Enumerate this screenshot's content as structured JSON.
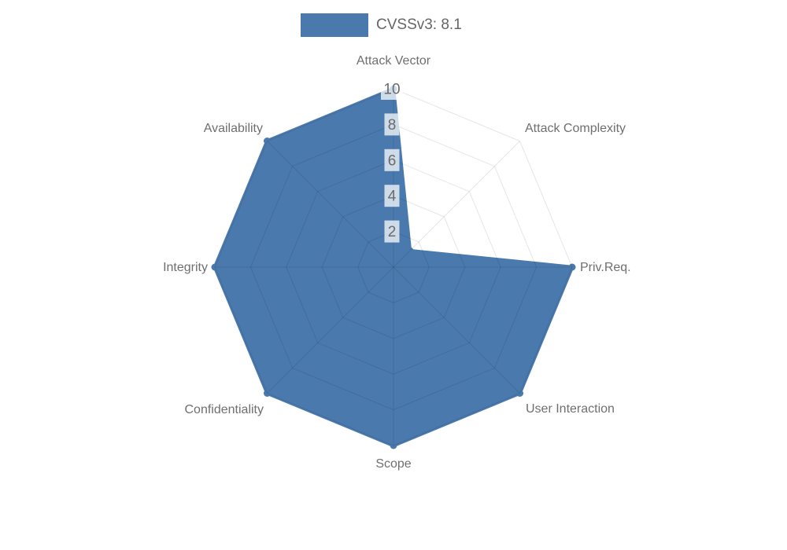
{
  "chart_data": {
    "type": "radar",
    "legend_label": "CVSSv3: 8.1",
    "legend_position": "top",
    "axes": [
      "Attack Vector",
      "Attack Complexity",
      "Priv.Req.",
      "User Interaction",
      "Scope",
      "Confidentiality",
      "Integrity",
      "Availability"
    ],
    "series": [
      {
        "name": "CVSSv3: 8.1",
        "values": [
          10,
          1.3,
          10,
          10,
          10,
          10,
          10,
          10
        ],
        "color": "#4a79ad"
      }
    ],
    "scale": {
      "min": 0,
      "max": 10,
      "tick_values": [
        2,
        4,
        6,
        8,
        10
      ],
      "tick_labels": [
        "2",
        "4",
        "6",
        "8",
        "10"
      ]
    },
    "grid": true,
    "colors": {
      "fill": "#4a79ad",
      "grid_line": "rgba(0,0,0,0.10)",
      "tick_text": "#6b6b6b",
      "tick_backdrop": "rgba(255,255,255,0.73)",
      "axis_label": "#6f6f6f",
      "legend_text": "#666666",
      "background": "#ffffff"
    }
  }
}
